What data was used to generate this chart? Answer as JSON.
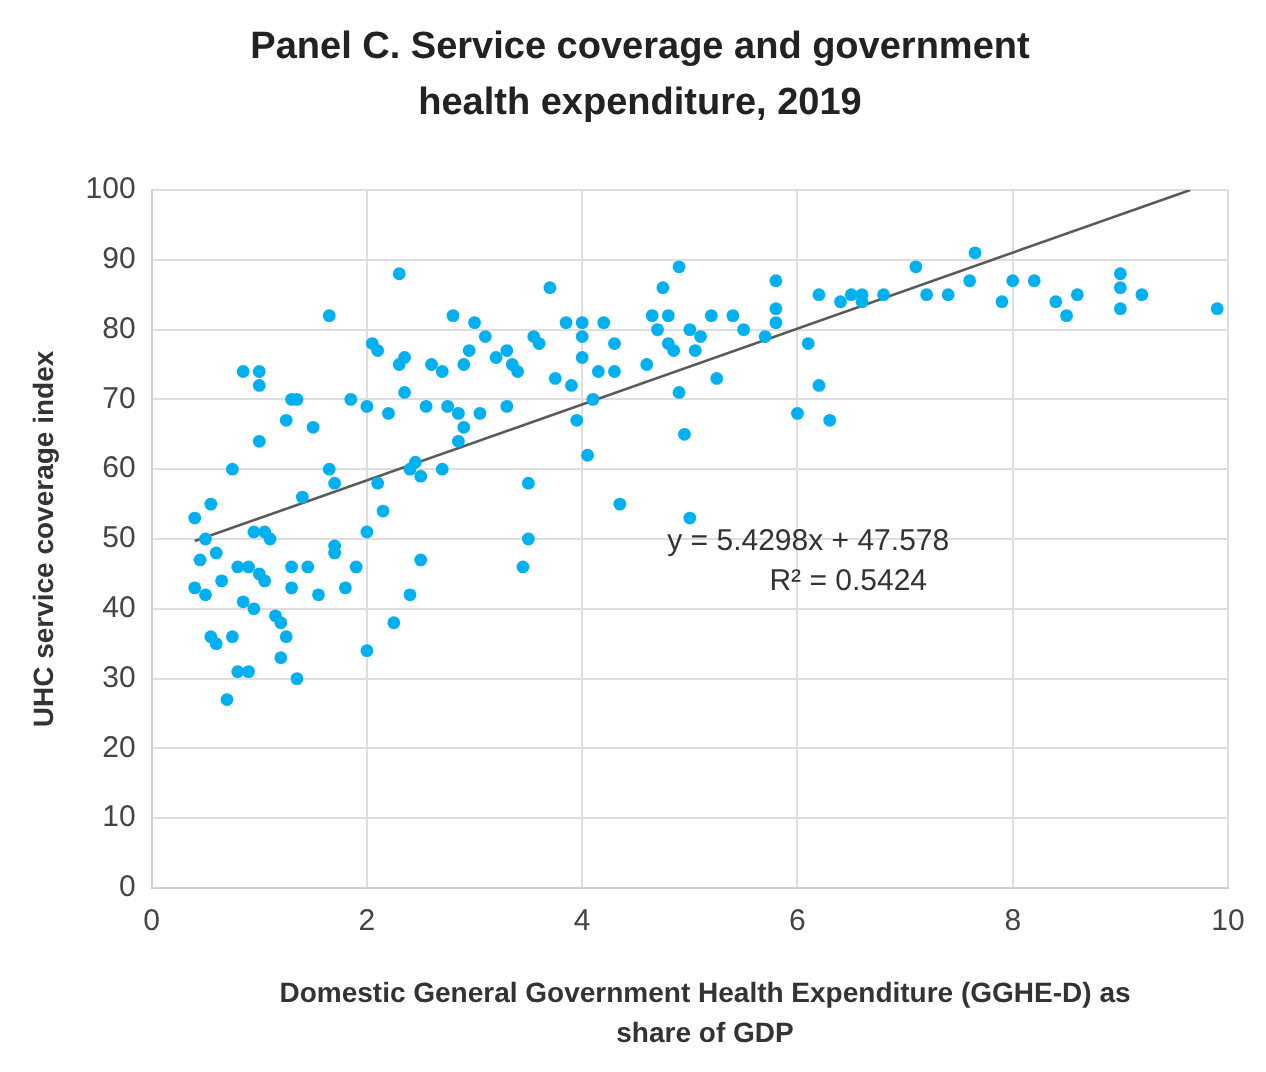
{
  "chart_data": {
    "type": "scatter",
    "title": "Panel C. Service coverage and government health expenditure, 2019",
    "xlabel": "Domestic General Government Health Expenditure (GGHE-D) as share of GDP",
    "ylabel": "UHC service coverage index",
    "xlim": [
      0,
      10
    ],
    "xticks": [
      0,
      2,
      4,
      6,
      8,
      10
    ],
    "ylim": [
      0,
      100
    ],
    "yticks": [
      0,
      10,
      20,
      30,
      40,
      50,
      60,
      70,
      80,
      90,
      100
    ],
    "grid": true,
    "legend": false,
    "marker": "circle",
    "annotations": [
      "y = 5.4298x + 47.578",
      "R² = 0.5424"
    ],
    "series": [
      {
        "color": "#00b0f0",
        "x": [
          0.4,
          0.4,
          0.45,
          0.5,
          0.5,
          0.55,
          0.55,
          0.6,
          0.6,
          0.65,
          0.7,
          0.75,
          0.75,
          0.8,
          0.8,
          0.85,
          0.85,
          0.9,
          0.9,
          0.95,
          0.95,
          1.0,
          1.0,
          1.0,
          1.0,
          1.05,
          1.05,
          1.1,
          1.15,
          1.2,
          1.2,
          1.25,
          1.25,
          1.3,
          1.3,
          1.3,
          1.35,
          1.35,
          1.4,
          1.45,
          1.5,
          1.55,
          1.65,
          1.65,
          1.7,
          1.7,
          1.7,
          1.8,
          1.85,
          1.9,
          2.0,
          2.0,
          2.0,
          2.05,
          2.1,
          2.1,
          2.15,
          2.2,
          2.25,
          2.3,
          2.3,
          2.35,
          2.35,
          2.4,
          2.4,
          2.45,
          2.5,
          2.5,
          2.55,
          2.6,
          2.7,
          2.7,
          2.75,
          2.8,
          2.85,
          2.85,
          2.9,
          2.9,
          2.95,
          3.0,
          3.05,
          3.1,
          3.2,
          3.3,
          3.3,
          3.35,
          3.4,
          3.45,
          3.5,
          3.5,
          3.55,
          3.6,
          3.7,
          3.75,
          3.85,
          3.9,
          3.95,
          4.0,
          4.0,
          4.0,
          4.05,
          4.1,
          4.15,
          4.2,
          4.3,
          4.3,
          4.35,
          4.6,
          4.65,
          4.7,
          4.75,
          4.8,
          4.8,
          4.85,
          4.9,
          4.9,
          4.95,
          5.0,
          5.0,
          5.05,
          5.1,
          5.2,
          5.25,
          5.4,
          5.5,
          5.7,
          5.8,
          5.8,
          5.8,
          6.0,
          6.1,
          6.2,
          6.2,
          6.3,
          6.4,
          6.5,
          6.6,
          6.6,
          6.8,
          7.1,
          7.2,
          7.4,
          7.6,
          7.65,
          7.9,
          8.0,
          8.2,
          8.4,
          8.5,
          8.6,
          9.0,
          9.0,
          9.0,
          9.2,
          9.9
        ],
        "values": [
          53,
          43,
          47,
          42,
          50,
          55,
          36,
          35,
          48,
          44,
          27,
          60,
          36,
          46,
          31,
          74,
          41,
          31,
          46,
          40,
          51,
          72,
          64,
          45,
          74,
          51,
          44,
          50,
          39,
          38,
          33,
          67,
          36,
          43,
          46,
          70,
          30,
          70,
          56,
          46,
          66,
          42,
          82,
          60,
          58,
          48,
          49,
          43,
          70,
          46,
          34,
          51,
          69,
          78,
          77,
          58,
          54,
          68,
          38,
          88,
          75,
          76,
          71,
          42,
          60,
          61,
          59,
          47,
          69,
          75,
          74,
          60,
          69,
          82,
          68,
          64,
          66,
          75,
          77,
          81,
          68,
          79,
          76,
          77,
          69,
          75,
          74,
          46,
          58,
          50,
          79,
          78,
          86,
          73,
          81,
          72,
          67,
          81,
          76,
          79,
          62,
          70,
          74,
          81,
          78,
          74,
          55,
          75,
          82,
          80,
          86,
          82,
          78,
          77,
          89,
          71,
          65,
          53,
          80,
          77,
          79,
          82,
          73,
          82,
          80,
          79,
          87,
          81,
          83,
          68,
          78,
          72,
          85,
          67,
          84,
          85,
          85,
          84,
          85,
          89,
          85,
          85,
          87,
          91,
          84,
          87,
          87,
          84,
          82,
          85,
          88,
          86,
          83,
          85,
          83
        ]
      },
      {
        "type": "line",
        "color": "#595959",
        "x": [
          0.4,
          9.65
        ],
        "values": [
          49.7,
          100
        ],
        "marker": "none"
      }
    ]
  }
}
